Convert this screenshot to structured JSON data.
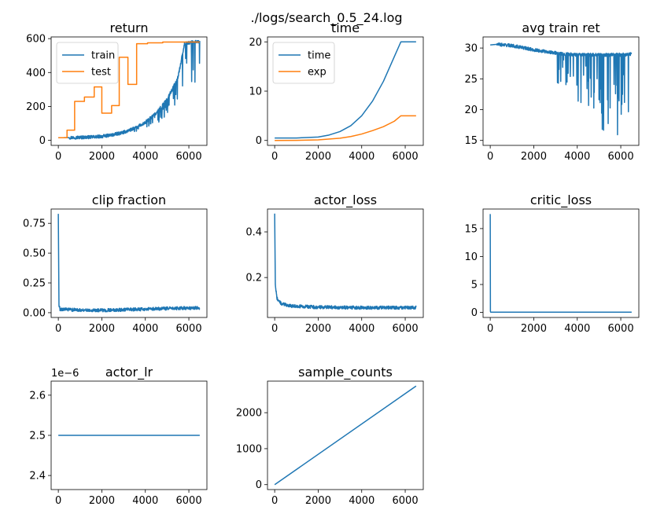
{
  "suptitle": "./logs/search_0.5_24.log",
  "colors": {
    "blue": "#1f77b4",
    "orange": "#ff7f0e"
  },
  "chart_data": [
    {
      "id": "return",
      "type": "line",
      "title": "return",
      "xlim": [
        -330,
        6830
      ],
      "ylim": [
        -30,
        610
      ],
      "xticks": [
        0,
        2000,
        4000,
        6000
      ],
      "yticks": [
        0,
        200,
        400,
        600
      ],
      "legend": "upper-left",
      "series": [
        {
          "name": "train",
          "color": "#1f77b4",
          "kind": "noisy",
          "x": [
            0,
            500,
            1000,
            1500,
            2000,
            2500,
            3000,
            3500,
            4000,
            4500,
            5000,
            5500,
            5800,
            6200,
            6500
          ],
          "y": [
            15,
            16,
            17,
            19,
            23,
            32,
            47,
            70,
            105,
            160,
            240,
            370,
            570,
            580,
            580
          ],
          "dips": [
            [
              3500,
              4500,
              0.3
            ],
            [
              4500,
              5500,
              0.35
            ],
            [
              5500,
              6500,
              0.47
            ]
          ]
        },
        {
          "name": "test",
          "color": "#ff7f0e",
          "kind": "step",
          "x": [
            0,
            400,
            750,
            1200,
            1650,
            2000,
            2450,
            2800,
            3200,
            3600,
            4100,
            4800,
            6500
          ],
          "y": [
            15,
            60,
            230,
            255,
            315,
            160,
            205,
            490,
            330,
            570,
            575,
            580,
            580
          ]
        }
      ]
    },
    {
      "id": "time",
      "type": "line",
      "title": "time",
      "xlim": [
        -330,
        6830
      ],
      "ylim": [
        -1,
        21
      ],
      "xticks": [
        0,
        2000,
        4000,
        6000
      ],
      "yticks": [
        0,
        10,
        20
      ],
      "legend": "upper-left",
      "series": [
        {
          "name": "time",
          "color": "#1f77b4",
          "kind": "line",
          "x": [
            0,
            1000,
            2000,
            2500,
            3000,
            3500,
            4000,
            4500,
            5000,
            5500,
            5800,
            6500
          ],
          "y": [
            0.5,
            0.5,
            0.7,
            1.1,
            1.8,
            3.0,
            5.0,
            8.0,
            12.0,
            17.0,
            20.0,
            20.0
          ]
        },
        {
          "name": "exp",
          "color": "#ff7f0e",
          "kind": "line",
          "x": [
            0,
            1000,
            2000,
            3000,
            3500,
            4000,
            4500,
            5000,
            5500,
            5800,
            6500
          ],
          "y": [
            0,
            0.02,
            0.12,
            0.45,
            0.8,
            1.3,
            2.0,
            2.8,
            3.9,
            5.0,
            5.0
          ]
        }
      ]
    },
    {
      "id": "avg-train-ret",
      "type": "line",
      "title": "avg train ret",
      "xlim": [
        -330,
        6830
      ],
      "ylim": [
        14.2,
        31.8
      ],
      "xticks": [
        0,
        2000,
        4000,
        6000
      ],
      "yticks": [
        15,
        20,
        25,
        30
      ],
      "series": [
        {
          "name": "",
          "color": "#1f77b4",
          "kind": "noisy",
          "x": [
            0,
            300,
            1000,
            2000,
            3000,
            4000,
            5000,
            6000,
            6500
          ],
          "y": [
            30.5,
            30.6,
            30.4,
            29.7,
            29.2,
            28.9,
            28.9,
            28.9,
            29.0
          ],
          "dips": [
            [
              3000,
              4000,
              0.35
            ],
            [
              4000,
              5000,
              0.6
            ],
            [
              5000,
              6500,
              0.9
            ]
          ]
        }
      ]
    },
    {
      "id": "clip-fraction",
      "type": "line",
      "title": "clip fraction",
      "xlim": [
        -330,
        6830
      ],
      "ylim": [
        -0.04,
        0.87
      ],
      "xticks": [
        0,
        2000,
        4000,
        6000
      ],
      "yticks": [
        0.0,
        0.25,
        0.5,
        0.75
      ],
      "series": [
        {
          "name": "",
          "color": "#1f77b4",
          "kind": "noisy",
          "x": [
            0,
            30,
            80,
            500,
            2000,
            4000,
            6000,
            6500
          ],
          "y": [
            0.83,
            0.06,
            0.03,
            0.025,
            0.02,
            0.03,
            0.04,
            0.04
          ]
        }
      ]
    },
    {
      "id": "actor-loss",
      "type": "line",
      "title": "actor_loss",
      "xlim": [
        -330,
        6830
      ],
      "ylim": [
        0.025,
        0.5
      ],
      "xticks": [
        0,
        2000,
        4000,
        6000
      ],
      "yticks": [
        0.2,
        0.4
      ],
      "series": [
        {
          "name": "",
          "color": "#1f77b4",
          "kind": "noisy",
          "x": [
            0,
            30,
            100,
            300,
            800,
            2000,
            4000,
            6500
          ],
          "y": [
            0.48,
            0.17,
            0.11,
            0.085,
            0.075,
            0.07,
            0.068,
            0.068
          ]
        }
      ]
    },
    {
      "id": "critic-loss",
      "type": "line",
      "title": "critic_loss",
      "xlim": [
        -330,
        6830
      ],
      "ylim": [
        -0.9,
        18.5
      ],
      "xticks": [
        0,
        2000,
        4000,
        6000
      ],
      "yticks": [
        0,
        5,
        10,
        15
      ],
      "series": [
        {
          "name": "",
          "color": "#1f77b4",
          "kind": "line",
          "x": [
            0,
            8,
            20,
            6500
          ],
          "y": [
            17.6,
            0.2,
            0.05,
            0.05
          ]
        }
      ]
    },
    {
      "id": "actor-lr",
      "type": "line",
      "title": "actor_lr",
      "sci_label": "1e−6",
      "xlim": [
        -330,
        6830
      ],
      "ylim": [
        2.365,
        2.635
      ],
      "xticks": [
        0,
        2000,
        4000,
        6000
      ],
      "yticks": [
        2.4,
        2.5,
        2.6
      ],
      "series": [
        {
          "name": "",
          "color": "#1f77b4",
          "kind": "line",
          "x": [
            0,
            6500
          ],
          "y": [
            2.5,
            2.5
          ]
        }
      ]
    },
    {
      "id": "sample-counts",
      "type": "line",
      "title": "sample_counts",
      "xlim": [
        -330,
        6830
      ],
      "ylim": [
        -137,
        2877
      ],
      "xticks": [
        0,
        2000,
        4000,
        6000
      ],
      "yticks": [
        0,
        1000,
        2000
      ],
      "series": [
        {
          "name": "",
          "color": "#1f77b4",
          "kind": "line",
          "x": [
            0,
            6500
          ],
          "y": [
            0,
            2740
          ]
        }
      ]
    }
  ]
}
